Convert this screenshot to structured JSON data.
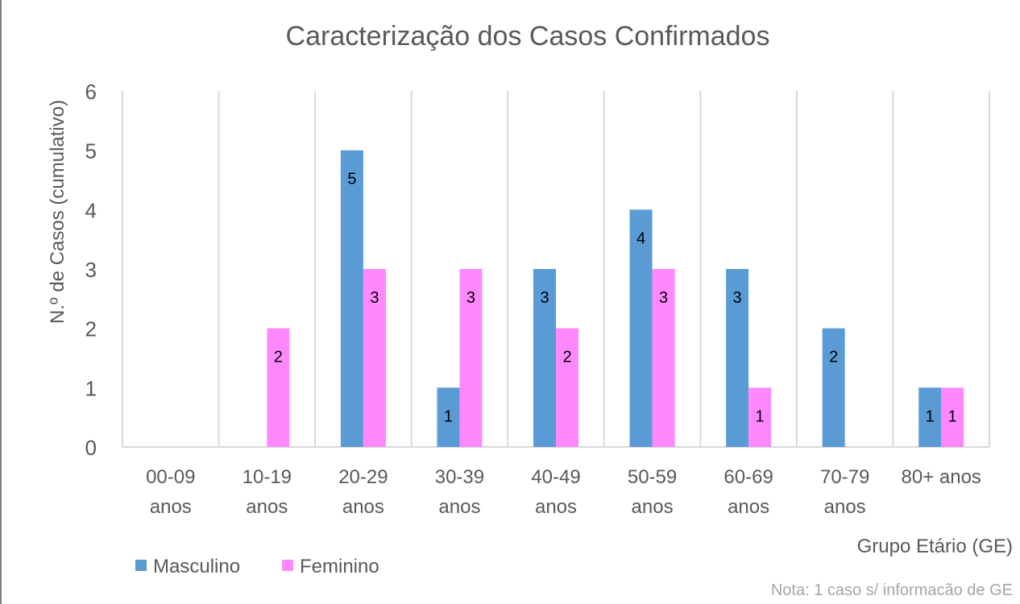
{
  "chart_data": {
    "type": "bar",
    "title": "Caracterização dos Casos Confirmados",
    "xlabel": "Grupo Etário (GE)",
    "ylabel": "N.º de Casos (cumulativo)",
    "note": "Nota: 1 caso s/ informacão de GE",
    "categories": [
      [
        "00-09",
        "anos"
      ],
      [
        "10-19",
        "anos"
      ],
      [
        "20-29",
        "anos"
      ],
      [
        "30-39",
        "anos"
      ],
      [
        "40-49",
        "anos"
      ],
      [
        "50-59",
        "anos"
      ],
      [
        "60-69",
        "anos"
      ],
      [
        "70-79",
        "anos"
      ],
      [
        "80+ anos"
      ]
    ],
    "series": [
      {
        "name": "Masculino",
        "color": "#5b9bd5",
        "values": [
          0,
          0,
          5,
          1,
          3,
          4,
          3,
          2,
          1
        ]
      },
      {
        "name": "Feminino",
        "color": "#ff88ff",
        "values": [
          0,
          2,
          3,
          3,
          2,
          3,
          1,
          0,
          1
        ]
      }
    ],
    "ylim": [
      0,
      6
    ],
    "yticks": [
      0,
      1,
      2,
      3,
      4,
      5,
      6
    ],
    "grid": "vertical",
    "legend": "bottom-left",
    "data_labels": true
  }
}
